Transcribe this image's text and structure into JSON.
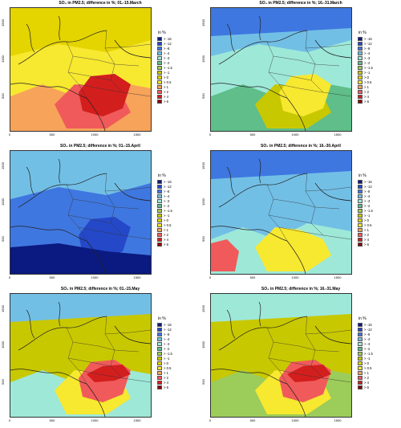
{
  "legend": {
    "title": "in %",
    "items": [
      {
        "label": "> -16",
        "color": "#0b1a80"
      },
      {
        "label": "> -12",
        "color": "#2448c8"
      },
      {
        "label": "> -8",
        "color": "#3f77e0"
      },
      {
        "label": "> -4",
        "color": "#72bfe6"
      },
      {
        "label": "> -3",
        "color": "#9ee8d8"
      },
      {
        "label": "> -2",
        "color": "#5fbe8a"
      },
      {
        "label": "> -1.5",
        "color": "#9ccc5a"
      },
      {
        "label": "> -1",
        "color": "#c8c800"
      },
      {
        "label": "> 0",
        "color": "#e4d400"
      },
      {
        "label": "> 0.5",
        "color": "#f7e830"
      },
      {
        "label": "> 1",
        "color": "#f7a35a"
      },
      {
        "label": "> 2",
        "color": "#f05a5a"
      },
      {
        "label": "> 4",
        "color": "#d31e1e"
      },
      {
        "label": "> 6",
        "color": "#8b0000"
      }
    ]
  },
  "axes": {
    "x_ticks": [
      "0",
      "500",
      "1000",
      "1500"
    ],
    "y_ticks": [
      "500",
      "1000",
      "1500"
    ]
  },
  "panels": [
    {
      "title": "SO₄ in PM2.5; difference in %; 01.-15.March",
      "base": "#f7e830",
      "zones": [
        [
          "#e4d400",
          0
        ],
        [
          "#f7a35a",
          1
        ],
        [
          "#f05a5a",
          2
        ],
        [
          "#d31e1e",
          3
        ]
      ]
    },
    {
      "title": "SO₄ in PM2.5; difference in %; 16.-31.March",
      "base": "#9ee8d8",
      "zones": [
        [
          "#72bfe6",
          0
        ],
        [
          "#5fbe8a",
          1
        ],
        [
          "#3f77e0",
          4
        ],
        [
          "#c8c800",
          2
        ],
        [
          "#f7e830",
          3
        ]
      ]
    },
    {
      "title": "SO₄ in PM2.5; difference in %; 01.-15.April",
      "base": "#3f77e0",
      "zones": [
        [
          "#9ccc5a",
          5
        ],
        [
          "#72bfe6",
          0
        ],
        [
          "#2448c8",
          3
        ],
        [
          "#0b1a80",
          6
        ]
      ]
    },
    {
      "title": "SO₄ in PM2.5; difference in %; 16.-30.April",
      "base": "#72bfe6",
      "zones": [
        [
          "#c8c800",
          5
        ],
        [
          "#9ee8d8",
          1
        ],
        [
          "#3f77e0",
          4
        ],
        [
          "#f7e830",
          2
        ],
        [
          "#f05a5a",
          7
        ]
      ]
    },
    {
      "title": "SO₄ in PM2.5; difference in %; 01.-15.May",
      "base": "#c8c800",
      "zones": [
        [
          "#9ee8d8",
          1
        ],
        [
          "#f7e830",
          2
        ],
        [
          "#f05a5a",
          3
        ],
        [
          "#d31e1e",
          8
        ],
        [
          "#72bfe6",
          4
        ]
      ]
    },
    {
      "title": "SO₄ in PM2.5; difference in %; 16.-31.May",
      "base": "#c8c800",
      "zones": [
        [
          "#9ccc5a",
          1
        ],
        [
          "#9ee8d8",
          4
        ],
        [
          "#f7e830",
          2
        ],
        [
          "#f05a5a",
          3
        ],
        [
          "#d31e1e",
          8
        ]
      ]
    }
  ]
}
